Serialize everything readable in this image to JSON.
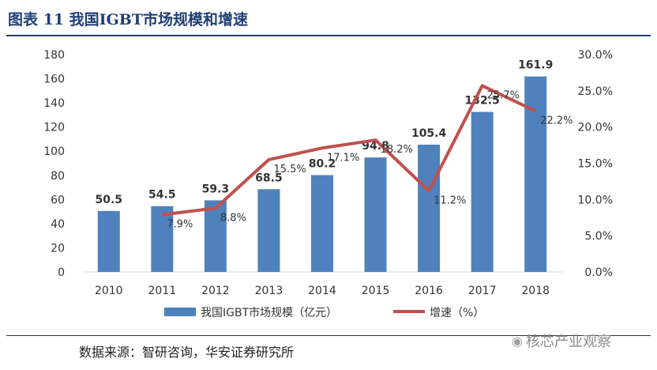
{
  "title": "图表 11 我国IGBT市场规模和增速",
  "source": "数据来源：智研咨询，华安证券研究所",
  "watermark": {
    "icon": "wechat-icon",
    "text": "核芯产业观察"
  },
  "colors": {
    "bar": "#4f81bd",
    "line": "#c0504d",
    "title": "#1f3f73"
  },
  "chart_data": {
    "type": "bar",
    "categories": [
      "2010",
      "2011",
      "2012",
      "2013",
      "2014",
      "2015",
      "2016",
      "2017",
      "2018"
    ],
    "series": [
      {
        "name": "我国IGBT市场规模（亿元）",
        "type": "bar",
        "axis": "left",
        "values": [
          50.5,
          54.5,
          59.3,
          68.5,
          80.2,
          94.8,
          105.4,
          132.5,
          161.9
        ],
        "labels": [
          "50.5",
          "54.5",
          "59.3",
          "68.5",
          "80.2",
          "94.8",
          "105.4",
          "132.5",
          "161.9"
        ]
      },
      {
        "name": "增速（%）",
        "type": "line",
        "axis": "right",
        "values": [
          null,
          7.9,
          8.8,
          15.5,
          17.1,
          18.2,
          11.2,
          25.7,
          22.2
        ],
        "labels": [
          "",
          "7.9%",
          "8.8%",
          "15.5%",
          "17.1%",
          "18.2%",
          "11.2%",
          "25.7%",
          "22.2%"
        ]
      }
    ],
    "y_left": {
      "min": 0,
      "max": 180,
      "ticks": [
        "0",
        "20",
        "40",
        "60",
        "80",
        "100",
        "120",
        "140",
        "160",
        "180"
      ]
    },
    "y_right": {
      "min": 0,
      "max": 30,
      "ticks": [
        "0.0%",
        "5.0%",
        "10.0%",
        "15.0%",
        "20.0%",
        "25.0%",
        "30.0%"
      ]
    },
    "grid": false,
    "legend_position": "bottom"
  }
}
